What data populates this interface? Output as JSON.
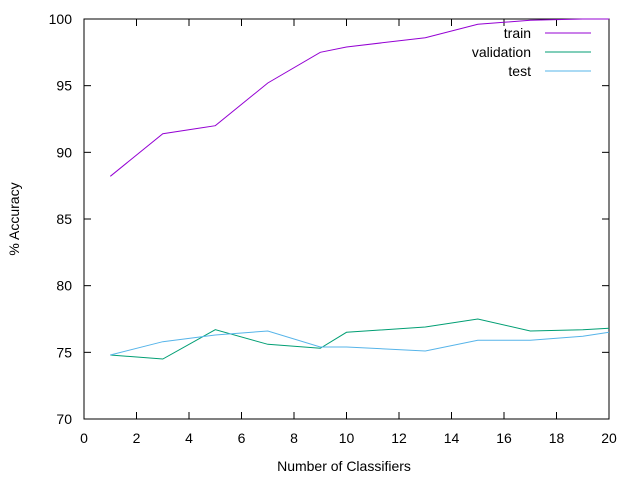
{
  "chart_data": {
    "type": "line",
    "title": "",
    "xlabel": "Number of Classifiers",
    "ylabel": "% Accuracy",
    "xlim": [
      0,
      20
    ],
    "ylim": [
      70,
      100
    ],
    "xticks": [
      0,
      2,
      4,
      6,
      8,
      10,
      12,
      14,
      16,
      18,
      20
    ],
    "yticks": [
      70,
      75,
      80,
      85,
      90,
      95,
      100
    ],
    "grid": false,
    "legend_position": "top-right",
    "series": [
      {
        "name": "train",
        "color": "#9400d3",
        "x": [
          1,
          3,
          5,
          7,
          9,
          10,
          13,
          15,
          17,
          19,
          20
        ],
        "y": [
          88.2,
          91.4,
          92.0,
          95.2,
          97.5,
          97.9,
          98.6,
          99.6,
          99.9,
          100.0,
          100.0
        ]
      },
      {
        "name": "validation",
        "color": "#009e73",
        "x": [
          1,
          3,
          5,
          7,
          9,
          10,
          13,
          15,
          17,
          19,
          20
        ],
        "y": [
          74.8,
          74.5,
          76.7,
          75.6,
          75.3,
          76.5,
          76.9,
          77.5,
          76.6,
          76.7,
          76.8
        ]
      },
      {
        "name": "test",
        "color": "#56b4e9",
        "x": [
          1,
          3,
          5,
          7,
          9,
          10,
          13,
          15,
          17,
          19,
          20
        ],
        "y": [
          74.8,
          75.8,
          76.3,
          76.6,
          75.4,
          75.4,
          75.1,
          75.9,
          75.9,
          76.2,
          76.5
        ]
      }
    ]
  }
}
